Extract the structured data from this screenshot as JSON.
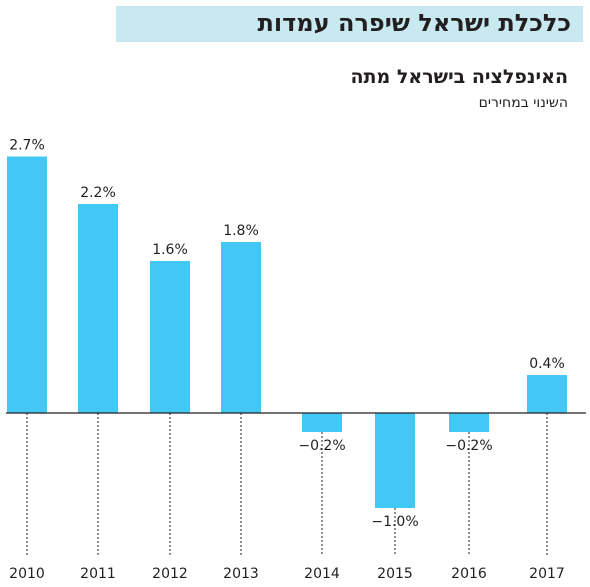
{
  "header": {
    "banner": "כלכלת ישראל שיפרה עמדות",
    "title": "האינפלציה בישראל מתה",
    "subtitle": "השינוי במחירים"
  },
  "chart_data": {
    "type": "bar",
    "categories": [
      "2010",
      "2011",
      "2012",
      "2013",
      "2014",
      "2015",
      "2016",
      "2017"
    ],
    "values": [
      2.7,
      2.2,
      1.6,
      1.8,
      -0.2,
      -1.0,
      -0.2,
      0.4
    ],
    "value_labels": [
      "2.7%",
      "2.2%",
      "1.6%",
      "1.8%",
      "−0.2%",
      "−1.0%",
      "−0.2%",
      "0.4%"
    ],
    "title": "האינפלציה בישראל מתה",
    "subtitle": "השינוי במחירים",
    "xlabel": "",
    "ylabel": "",
    "ylim": [
      -1.0,
      2.7
    ],
    "grid": false,
    "bar_color": "#43c8f5",
    "axis_color": "#231f20"
  }
}
